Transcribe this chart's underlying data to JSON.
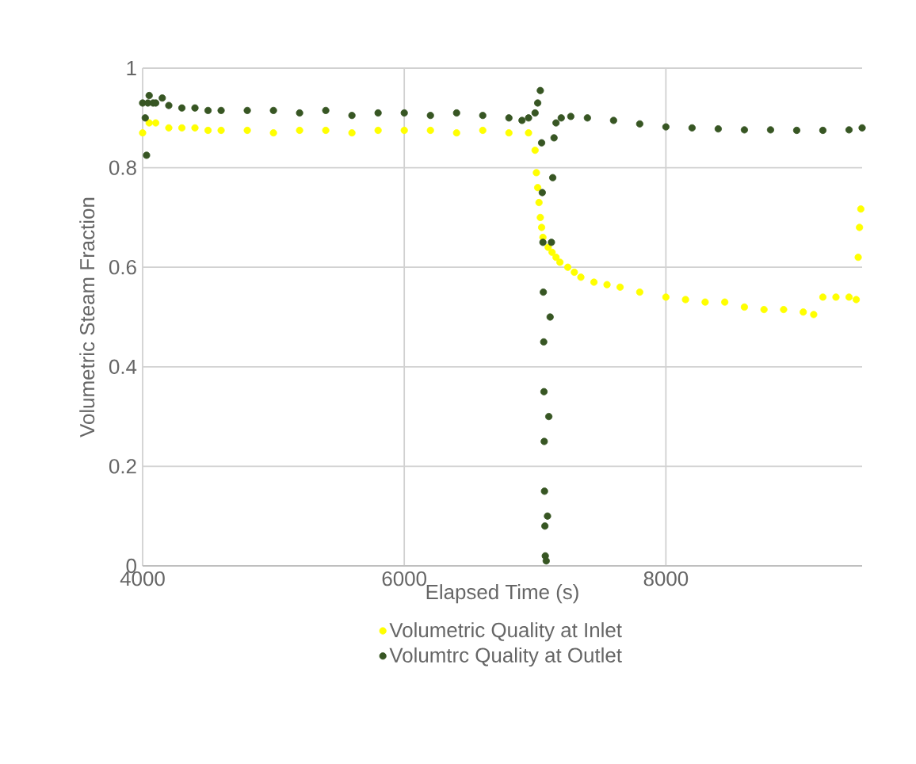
{
  "chart_data": {
    "type": "scatter",
    "xlabel": "Elapsed Time (s)",
    "ylabel": "Volumetric Steam Fraction",
    "xlim": [
      4000,
      9500
    ],
    "xticks": [
      4000,
      6000,
      8000
    ],
    "ylim": [
      0,
      1
    ],
    "yticks": [
      0,
      0.2,
      0.4,
      0.6,
      0.8,
      1
    ],
    "grid": true,
    "legend": "bottom",
    "series": [
      {
        "name": "Volumetric Quality at Inlet",
        "color": "#ffff00",
        "x": [
          4000,
          4050,
          4100,
          4200,
          4300,
          4400,
          4500,
          4600,
          4800,
          5000,
          5200,
          5400,
          5600,
          5800,
          6000,
          6200,
          6400,
          6600,
          6800,
          6950,
          7000,
          7010,
          7020,
          7030,
          7040,
          7050,
          7060,
          7100,
          7130,
          7160,
          7190,
          7250,
          7300,
          7350,
          7450,
          7550,
          7650,
          7800,
          8000,
          8150,
          8300,
          8450,
          8600,
          8750,
          8900,
          9050,
          9130,
          9200,
          9300,
          9400,
          9455,
          9470,
          9480,
          9490
        ],
        "values": [
          0.87,
          0.89,
          0.89,
          0.88,
          0.88,
          0.88,
          0.875,
          0.875,
          0.875,
          0.87,
          0.875,
          0.875,
          0.87,
          0.875,
          0.875,
          0.875,
          0.87,
          0.875,
          0.87,
          0.87,
          0.835,
          0.79,
          0.76,
          0.73,
          0.7,
          0.68,
          0.66,
          0.64,
          0.63,
          0.62,
          0.61,
          0.6,
          0.59,
          0.58,
          0.57,
          0.565,
          0.56,
          0.55,
          0.54,
          0.535,
          0.53,
          0.53,
          0.52,
          0.515,
          0.515,
          0.51,
          0.505,
          0.54,
          0.54,
          0.54,
          0.535,
          0.62,
          0.68,
          0.717
        ]
      },
      {
        "name": "Volumtrc Quality at Outlet",
        "color": "#375623",
        "x": [
          4000,
          4020,
          4030,
          4040,
          4050,
          4080,
          4100,
          4150,
          4200,
          4300,
          4400,
          4500,
          4600,
          4800,
          5000,
          5200,
          5400,
          5600,
          5800,
          6000,
          6200,
          6400,
          6600,
          6800,
          6900,
          6950,
          7000,
          7020,
          7040,
          7050,
          7055,
          7060,
          7063,
          7066,
          7068,
          7070,
          7072,
          7075,
          7078,
          7085,
          7095,
          7105,
          7115,
          7125,
          7135,
          7145,
          7160,
          7200,
          7273,
          7400,
          7600,
          7800,
          8000,
          8200,
          8400,
          8600,
          8800,
          9000,
          9200,
          9400,
          9500
        ],
        "values": [
          0.93,
          0.9,
          0.825,
          0.93,
          0.945,
          0.93,
          0.93,
          0.94,
          0.925,
          0.92,
          0.92,
          0.915,
          0.915,
          0.915,
          0.915,
          0.91,
          0.915,
          0.905,
          0.91,
          0.91,
          0.905,
          0.91,
          0.905,
          0.9,
          0.895,
          0.9,
          0.91,
          0.93,
          0.955,
          0.85,
          0.75,
          0.65,
          0.55,
          0.45,
          0.35,
          0.25,
          0.15,
          0.08,
          0.02,
          0.01,
          0.1,
          0.3,
          0.5,
          0.65,
          0.78,
          0.86,
          0.89,
          0.9,
          0.903,
          0.9,
          0.895,
          0.888,
          0.882,
          0.88,
          0.878,
          0.876,
          0.876,
          0.875,
          0.875,
          0.876,
          0.88
        ]
      }
    ]
  }
}
